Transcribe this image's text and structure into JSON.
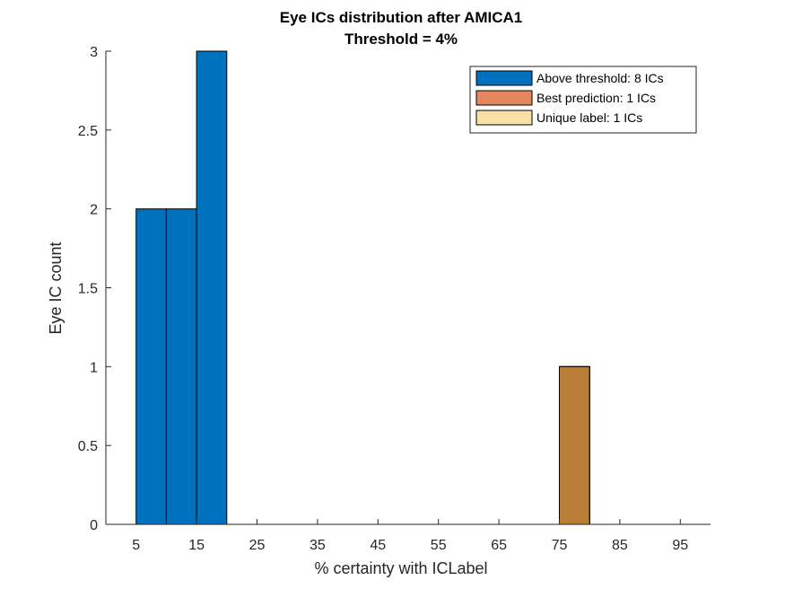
{
  "chart_data": {
    "type": "bar",
    "title": "Eye ICs distribution after AMICA1",
    "subtitle": "Threshold = 4%",
    "xlabel": "% certainty with ICLabel",
    "ylabel": "Eye IC count",
    "xlim": [
      0,
      100
    ],
    "ylim": [
      0,
      3
    ],
    "x_ticks": [
      "5",
      "15",
      "25",
      "35",
      "45",
      "55",
      "65",
      "75",
      "85",
      "95"
    ],
    "y_ticks": [
      "0",
      "0.5",
      "1",
      "1.5",
      "2",
      "2.5",
      "3"
    ],
    "bin_edges": [
      5,
      10,
      15,
      20,
      25,
      30,
      35,
      40,
      45,
      50,
      55,
      60,
      65,
      70,
      75,
      80,
      85,
      90,
      95,
      100
    ],
    "series": [
      {
        "name": "Above threshold: 8 ICs",
        "color": "#0072BD",
        "values": [
          2,
          2,
          3,
          0,
          0,
          0,
          0,
          0,
          0,
          0,
          0,
          0,
          0,
          0,
          1,
          0,
          0,
          0,
          0
        ]
      },
      {
        "name": "Best prediction: 1 ICs",
        "color": "#D95319",
        "alpha": 0.7,
        "values": [
          0,
          0,
          0,
          0,
          0,
          0,
          0,
          0,
          0,
          0,
          0,
          0,
          0,
          0,
          1,
          0,
          0,
          0,
          0
        ]
      },
      {
        "name": "Unique label: 1 ICs",
        "color": "#EDB120",
        "alpha": 0.4,
        "values": [
          0,
          0,
          0,
          0,
          0,
          0,
          0,
          0,
          0,
          0,
          0,
          0,
          0,
          0,
          1,
          0,
          0,
          0,
          0
        ]
      }
    ],
    "legend_position": "top-right",
    "grid": false
  }
}
